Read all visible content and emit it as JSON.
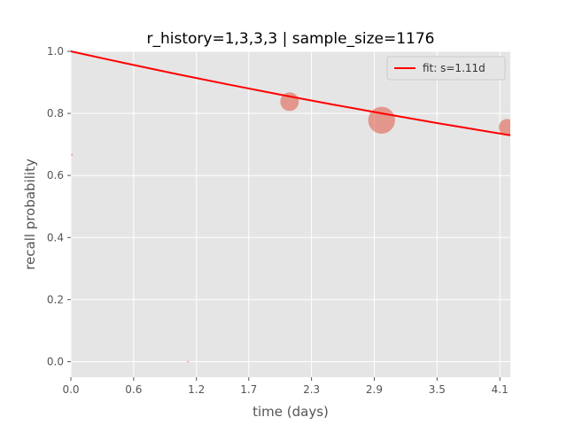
{
  "chart_data": {
    "type": "scatter",
    "title": "r_history=1,3,3,3 | sample_size=1176",
    "xlabel": "time (days)",
    "ylabel": "recall probability",
    "xlim": [
      0.0,
      4.2
    ],
    "ylim": [
      -0.05,
      1.0
    ],
    "x_ticks": [
      0.0,
      0.6,
      1.2,
      1.7,
      2.3,
      2.9,
      3.5,
      4.1
    ],
    "x_tick_labels": [
      "0.0",
      "0.6",
      "1.2",
      "1.7",
      "2.3",
      "2.9",
      "3.5",
      "4.1"
    ],
    "y_ticks": [
      0.0,
      0.2,
      0.4,
      0.6,
      0.8,
      1.0
    ],
    "y_tick_labels": [
      "0.0",
      "0.2",
      "0.4",
      "0.6",
      "0.8",
      "1.0"
    ],
    "grid": true,
    "legend_position": "top-right",
    "colors": {
      "background": "#e5e5e5",
      "grid": "#ffffff",
      "fit_line": "#ff0000",
      "points": "#e24a33"
    },
    "series": [
      {
        "name": "fit: s=1.11d",
        "kind": "line",
        "model": "exponential_decay",
        "stability_days": 1.11,
        "x": [
          0.0,
          0.5,
          1.0,
          1.5,
          2.0,
          2.5,
          3.0,
          3.5,
          4.0,
          4.2
        ],
        "y": [
          1.0,
          0.9632,
          0.9277,
          0.8935,
          0.8606,
          0.8289,
          0.7984,
          0.769,
          0.7407,
          0.7297
        ]
      },
      {
        "kind": "scatter",
        "x": [
          0.01,
          1.12,
          2.09,
          2.97,
          4.17
        ],
        "y": [
          0.667,
          0.0,
          0.838,
          0.778,
          0.755
        ],
        "size": [
          1,
          1,
          110,
          230,
          90
        ]
      }
    ]
  }
}
